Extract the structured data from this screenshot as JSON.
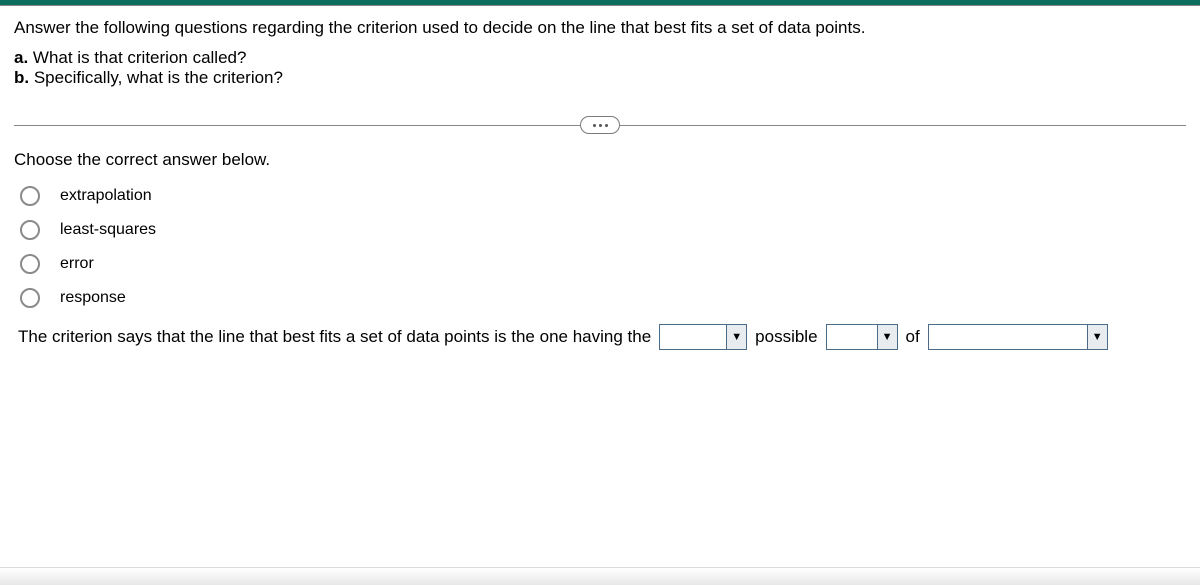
{
  "colors": {
    "top_bar": "#0d6e5f",
    "radio_border": "#8a8a8a",
    "dropdown_border": "#4a6b8a",
    "dropdown_caret_bg": "#e8ecef",
    "divider": "#888888"
  },
  "question": {
    "intro": "Answer the following questions regarding the criterion used to decide on the line that best fits a set of data points.",
    "part_a_label": "a.",
    "part_a_text": " What is that criterion called?",
    "part_b_label": "b.",
    "part_b_text": " Specifically, what is the criterion?"
  },
  "instruction": "Choose the correct answer below.",
  "options": [
    "extrapolation",
    "least-squares",
    "error",
    "response"
  ],
  "sentence": {
    "prefix": "The criterion says that the line that best fits a set of data points is the one having the",
    "word_possible": "possible",
    "word_of": "of",
    "dropdown1_value": "",
    "dropdown2_value": "",
    "dropdown3_value": ""
  }
}
